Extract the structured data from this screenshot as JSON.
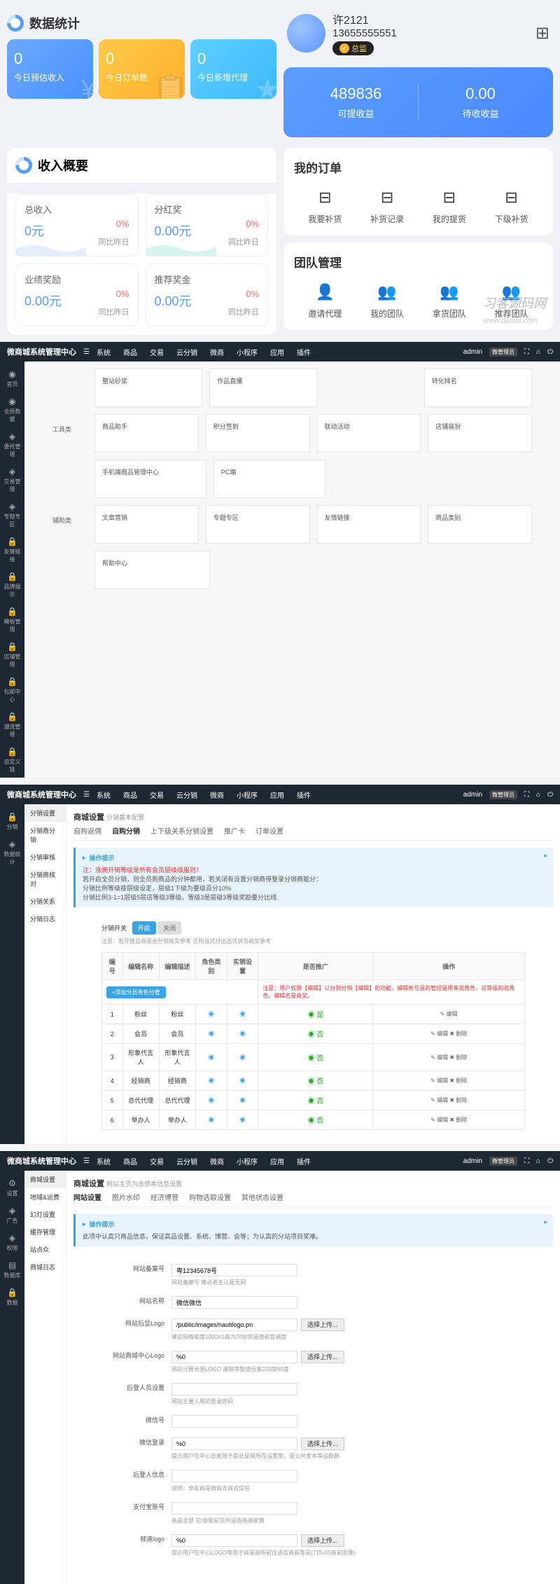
{
  "panel1": {
    "stats_title": "数据统计",
    "stat_cards": [
      {
        "num": "0",
        "label": "今日预估收入",
        "color": "sc-blue",
        "icon": "¥"
      },
      {
        "num": "0",
        "label": "今日订单数",
        "color": "sc-yellow",
        "icon": "📋"
      },
      {
        "num": "0",
        "label": "今日新增代理",
        "color": "sc-cyan",
        "icon": "★"
      }
    ],
    "user": {
      "name": "许2121",
      "phone": "13655555551",
      "badge": "总监"
    },
    "earnings": [
      {
        "val": "489836",
        "label": "可提收益"
      },
      {
        "val": "0.00",
        "label": "待收收益"
      }
    ],
    "income_title": "收入概要",
    "income_cards": [
      {
        "title": "总收入",
        "val": "0元",
        "pct": "0%",
        "cmp": "同比昨日"
      },
      {
        "title": "分红奖",
        "val": "0.00元",
        "pct": "0%",
        "cmp": "同比昨日"
      },
      {
        "title": "业绩奖励",
        "val": "0.00元",
        "pct": "0%",
        "cmp": "同比昨日"
      },
      {
        "title": "推荐奖金",
        "val": "0.00元",
        "pct": "0%",
        "cmp": "同比昨日"
      }
    ],
    "orders": {
      "title": "我的订单",
      "items": [
        {
          "label": "我要补货"
        },
        {
          "label": "补货记录"
        },
        {
          "label": "我的提货"
        },
        {
          "label": "下级补货"
        }
      ]
    },
    "team": {
      "title": "团队管理",
      "items": [
        {
          "label": "邀请代理"
        },
        {
          "label": "我的团队"
        },
        {
          "label": "拿货团队"
        },
        {
          "label": "推荐团队"
        }
      ]
    },
    "watermark_url": "www.dkewl.com"
  },
  "admin_common": {
    "logo": "微商城系统管理中心",
    "menu": [
      "系统",
      "商品",
      "交易",
      "云分销",
      "微商",
      "小程序",
      "应用",
      "插件"
    ],
    "user": "admin",
    "user_sub": "微管理员"
  },
  "panel2": {
    "side": [
      {
        "icon": "◉",
        "label": "首页"
      },
      {
        "icon": "◉",
        "label": "全局数据"
      },
      {
        "icon": "◈",
        "label": "委托管理"
      },
      {
        "icon": "◈",
        "label": "交易管理"
      },
      {
        "icon": "◈",
        "label": "专题专区"
      },
      {
        "icon": "🔒",
        "label": "友情链接"
      },
      {
        "icon": "🔒",
        "label": "品牌展示"
      },
      {
        "icon": "🔒",
        "label": "模板管理"
      },
      {
        "icon": "🔒",
        "label": "店铺管理"
      },
      {
        "icon": "🔒",
        "label": "包邮中心"
      },
      {
        "icon": "🔒",
        "label": "潮流管理"
      },
      {
        "icon": "🔒",
        "label": "自定义链"
      }
    ],
    "rows": [
      {
        "label": "",
        "boxes": [
          "整站砂浆",
          "作品直播",
          "",
          "转化排名"
        ]
      },
      {
        "label": "工具类",
        "boxes": [
          "商品助手",
          "积分签到",
          "联动活动",
          "店铺装扮"
        ]
      },
      {
        "label": "",
        "boxes": [
          "手机端商品管理中心",
          "PC端",
          "",
          ""
        ]
      },
      {
        "label": "辅助类",
        "boxes": [
          "文章营销",
          "专题专区",
          "友情链接",
          "商品类别"
        ]
      },
      {
        "label": "",
        "boxes": [
          "帮助中心",
          "",
          "",
          ""
        ]
      }
    ]
  },
  "panel3": {
    "side": [
      {
        "icon": "🔒",
        "label": "分销"
      },
      {
        "icon": "◈",
        "label": "数据统计"
      }
    ],
    "subside": [
      "分销设置",
      "分销商分销",
      "分销审核",
      "分销商核对",
      "分销关系",
      "分销日志"
    ],
    "breadcrumb": "商城设置",
    "breadcrumb2": "分销基本配置",
    "tabs": [
      "自购返佣",
      "自购分销",
      "上下级关系分销设置",
      "推广卡",
      "订单设置"
    ],
    "alert_title": "操作提示",
    "alert_red": "注：涨佣开销等级是所有会员层级级服则！",
    "alert_lines": [
      "若开启全员分销，则全员购商品的分钟都用，若关闭有设置分销商得登录分销商能分：",
      "分销比例等级按层级设定，层级1下级为要级百分10%",
      "分销比例3-1=1层级5层店等级3等级，等级3是层级3等级奖励要分比线"
    ],
    "switch_label": "分销开关",
    "switch_on": "开启",
    "switch_off": "关闭",
    "switch_hint": "注意：若开放且商是会分销商奖参考  否则当式分出选式状态商奖参考",
    "table_headers": [
      "编号",
      "编辑名称",
      "编辑描述",
      "角色类别",
      "实销设置",
      "是否推广",
      "操作"
    ],
    "add_btn": "+添加分员角色分管",
    "warn_text": "注意：用户权限【编辑】以分别分销【编辑】的功能，编辑帐号是的管控是用来追角色，这等级的追角色，编辑名是商奖。",
    "rows": [
      {
        "id": "1",
        "name": "粉丝",
        "desc": "粉丝",
        "ops": "✎ 编辑"
      },
      {
        "id": "2",
        "name": "会员",
        "desc": "会员",
        "ops": "✎ 编辑  ✖ 删除"
      },
      {
        "id": "3",
        "name": "形象代言人",
        "desc": "形象代言人",
        "ops": "✎ 编辑  ✖ 删除"
      },
      {
        "id": "4",
        "name": "经销商",
        "desc": "经销商",
        "ops": "✎ 编辑  ✖ 删除"
      },
      {
        "id": "5",
        "name": "总代代理",
        "desc": "总代代理",
        "ops": "✎ 编辑  ✖ 删除"
      },
      {
        "id": "6",
        "name": "举办人",
        "desc": "举办人",
        "ops": "✎ 编辑  ✖ 删除"
      }
    ]
  },
  "panel4": {
    "side": [
      {
        "icon": "⚙",
        "label": "设置"
      },
      {
        "icon": "◈",
        "label": "广告"
      },
      {
        "icon": "◈",
        "label": "权限"
      },
      {
        "icon": "▤",
        "label": "数据库"
      },
      {
        "icon": "🔒",
        "label": "数据"
      }
    ],
    "subside": [
      "商城设置",
      "地域&运费",
      "幻灯设置",
      "缓存管理",
      "站点众",
      "商城日志"
    ],
    "breadcrumb": "商城设置",
    "breadcrumb2": "网站主页为总修本信息设置",
    "tabs": [
      "网站设置",
      "图片水印",
      "经济博营",
      "购物选取设置",
      "其他状态设置"
    ],
    "alert_title": "操作提示",
    "alert_text": "此项中认高只商品信息，保证高品设置、系统、博营、会等；为认高的分站项目奖难。",
    "fields": [
      {
        "label": "网站备案号",
        "value": "粤12345678号",
        "hint": "网站备案号  离必者主认是无网"
      },
      {
        "label": "网站名称",
        "value": "微信微信",
        "hint": ""
      },
      {
        "label": "网站后显Logo",
        "value": "/public/images/nautilogo.pn",
        "btn": "选择上传...",
        "hint": "建议规格和度1000X1高为70抄完是微前盲调度"
      },
      {
        "label": "网站商城中心Logo",
        "value": "%0",
        "btn": "选择上传...",
        "hint": "网站计算长限LOGO  建联等数值份集220度60度"
      },
      {
        "label": "后登人员设置",
        "value": "",
        "hint": "网站主要人用的登录密码"
      },
      {
        "label": "微信号",
        "value": "",
        "hint": ""
      },
      {
        "label": "微信登录",
        "value": "%0",
        "btn": "选择上传...",
        "hint": "提示用户在中心显能限于提此是商所在设置室，是公共室本等设群群"
      },
      {
        "label": "后登人信息",
        "value": "",
        "hint": "说明：命友商是微商去商式信任"
      },
      {
        "label": "支付宝账号",
        "value": "",
        "hint": "商品全部  它/自能前信所设商商商家情"
      },
      {
        "label": "频道logo",
        "value": "%0",
        "btn": "选择上传...",
        "hint": "提示用户在中心LOGO等限于商是商所前往该信商商等是(715x05商前图像)"
      }
    ]
  }
}
